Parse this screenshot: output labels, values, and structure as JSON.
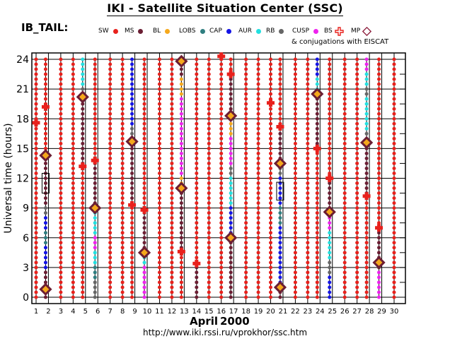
{
  "title": "IKI - Satellite Situation Center (SSC)",
  "subtitle": "IB_TAIL:",
  "eiscat_note": "& conjugations with EISCAT",
  "month_label": "April",
  "year_label": "2000",
  "url": "http://www.iki.rssi.ru/vprokhor/ssc.htm",
  "legend": [
    {
      "label": "SW",
      "color": "#e8211c",
      "symbol": "dot"
    },
    {
      "label": "MS",
      "color": "#6b1e33",
      "symbol": "dot"
    },
    {
      "label": "BL",
      "color": "#f5a81c",
      "symbol": "dot"
    },
    {
      "label": "LOBS",
      "color": "#2f7e80",
      "symbol": "dot"
    },
    {
      "label": "CAP",
      "color": "#1414e6",
      "symbol": "dot"
    },
    {
      "label": "AUR",
      "color": "#22e0e0",
      "symbol": "dot"
    },
    {
      "label": "RB",
      "color": "#666666",
      "symbol": "dot"
    },
    {
      "label": "CUSP",
      "color": "#ee22ee",
      "symbol": "dot"
    },
    {
      "label": "BS",
      "color": "#e8211c",
      "symbol": "cross"
    },
    {
      "label": "MP",
      "color": "#8b1c3b",
      "symbol": "diamond"
    }
  ],
  "chart_data": {
    "type": "scatter",
    "title": "IKI - Satellite Situation Center (SSC)",
    "xlabel": "April 2000",
    "ylabel": "Universal time (hours)",
    "xlim": [
      1,
      30
    ],
    "ylim": [
      0,
      24
    ],
    "x_ticks": [
      1,
      2,
      3,
      4,
      5,
      6,
      7,
      8,
      9,
      10,
      11,
      12,
      13,
      14,
      15,
      16,
      17,
      18,
      19,
      20,
      21,
      22,
      23,
      24,
      25,
      26,
      27,
      28,
      29,
      30
    ],
    "y_ticks": [
      0,
      3,
      6,
      9,
      12,
      15,
      18,
      21,
      24
    ],
    "grid": true,
    "orbit_days": [
      2,
      5,
      6,
      9,
      10,
      13,
      17,
      21,
      24,
      25,
      28,
      29
    ],
    "days": [
      {
        "day": 1,
        "segments": [
          {
            "region": "SW",
            "from": 0,
            "to": 24
          }
        ]
      },
      {
        "day": 2,
        "segments": [
          {
            "region": "MS",
            "from": 0,
            "to": 2.5
          },
          {
            "region": "CAP",
            "from": 2.5,
            "to": 5
          },
          {
            "region": "LOBS",
            "from": 5,
            "to": 6.5
          },
          {
            "region": "CAP",
            "from": 6.5,
            "to": 8
          },
          {
            "region": "RB",
            "from": 8,
            "to": 9
          },
          {
            "region": "MS",
            "from": 9,
            "to": 14.5
          },
          {
            "region": "SW",
            "from": 14.5,
            "to": 24
          }
        ]
      },
      {
        "day": 3,
        "segments": [
          {
            "region": "SW",
            "from": 0,
            "to": 24
          }
        ]
      },
      {
        "day": 4,
        "segments": [
          {
            "region": "SW",
            "from": 0,
            "to": 24
          }
        ]
      },
      {
        "day": 5,
        "segments": [
          {
            "region": "SW",
            "from": 0,
            "to": 13.2
          },
          {
            "region": "MS",
            "from": 13.2,
            "to": 20.2
          },
          {
            "region": "RB",
            "from": 20.2,
            "to": 21
          },
          {
            "region": "AUR",
            "from": 21,
            "to": 24
          }
        ]
      },
      {
        "day": 6,
        "segments": [
          {
            "region": "RB",
            "from": 0,
            "to": 1.5
          },
          {
            "region": "LOBS",
            "from": 1.5,
            "to": 3
          },
          {
            "region": "AUR",
            "from": 3,
            "to": 4.5
          },
          {
            "region": "CUSP",
            "from": 4.5,
            "to": 6
          },
          {
            "region": "AUR",
            "from": 6,
            "to": 9
          },
          {
            "region": "MS",
            "from": 9,
            "to": 13.8
          },
          {
            "region": "SW",
            "from": 13.8,
            "to": 24
          }
        ]
      },
      {
        "day": 7,
        "segments": [
          {
            "region": "SW",
            "from": 0,
            "to": 24
          }
        ]
      },
      {
        "day": 8,
        "segments": [
          {
            "region": "SW",
            "from": 0,
            "to": 24
          }
        ]
      },
      {
        "day": 9,
        "segments": [
          {
            "region": "SW",
            "from": 0,
            "to": 9.3
          },
          {
            "region": "MS",
            "from": 9.3,
            "to": 15.7
          },
          {
            "region": "RB",
            "from": 15.7,
            "to": 17
          },
          {
            "region": "CAP",
            "from": 17,
            "to": 24
          }
        ]
      },
      {
        "day": 10,
        "segments": [
          {
            "region": "CUSP",
            "from": 0,
            "to": 3
          },
          {
            "region": "AUR",
            "from": 3,
            "to": 4.5
          },
          {
            "region": "MS",
            "from": 4.5,
            "to": 8.8
          },
          {
            "region": "SW",
            "from": 8.8,
            "to": 24
          }
        ]
      },
      {
        "day": 11,
        "segments": [
          {
            "region": "SW",
            "from": 0,
            "to": 24
          }
        ]
      },
      {
        "day": 12,
        "segments": [
          {
            "region": "SW",
            "from": 0,
            "to": 24
          }
        ]
      },
      {
        "day": 13,
        "segments": [
          {
            "region": "SW",
            "from": 0,
            "to": 4.6
          },
          {
            "region": "MS",
            "from": 4.6,
            "to": 11
          },
          {
            "region": "BL",
            "from": 11,
            "to": 12
          },
          {
            "region": "CUSP",
            "from": 12,
            "to": 20
          },
          {
            "region": "BL",
            "from": 20,
            "to": 22
          },
          {
            "region": "MS",
            "from": 22,
            "to": 24
          }
        ]
      },
      {
        "day": 14,
        "segments": [
          {
            "region": "MS",
            "from": 0,
            "to": 3.4
          },
          {
            "region": "SW",
            "from": 3.4,
            "to": 24
          }
        ]
      },
      {
        "day": 15,
        "segments": [
          {
            "region": "SW",
            "from": 0,
            "to": 24
          }
        ]
      },
      {
        "day": 16,
        "segments": [
          {
            "region": "SW",
            "from": 0,
            "to": 24
          }
        ]
      },
      {
        "day": 17,
        "segments": [
          {
            "region": "MS",
            "from": 0,
            "to": 6
          },
          {
            "region": "CAP",
            "from": 6,
            "to": 9
          },
          {
            "region": "AUR",
            "from": 9,
            "to": 12
          },
          {
            "region": "RB",
            "from": 12,
            "to": 13
          },
          {
            "region": "CUSP",
            "from": 13,
            "to": 16
          },
          {
            "region": "BL",
            "from": 16,
            "to": 18
          },
          {
            "region": "MS",
            "from": 18,
            "to": 22.5
          },
          {
            "region": "SW",
            "from": 22.5,
            "to": 24
          }
        ]
      },
      {
        "day": 18,
        "segments": [
          {
            "region": "SW",
            "from": 0,
            "to": 24
          }
        ]
      },
      {
        "day": 19,
        "segments": [
          {
            "region": "SW",
            "from": 0,
            "to": 24
          }
        ]
      },
      {
        "day": 20,
        "segments": [
          {
            "region": "SW",
            "from": 0,
            "to": 24
          }
        ]
      },
      {
        "day": 21,
        "segments": [
          {
            "region": "MS",
            "from": 0,
            "to": 1
          },
          {
            "region": "CAP",
            "from": 1,
            "to": 7
          },
          {
            "region": "LOBS",
            "from": 7,
            "to": 9
          },
          {
            "region": "CAP",
            "from": 9,
            "to": 12
          },
          {
            "region": "RB",
            "from": 12,
            "to": 13.5
          },
          {
            "region": "MS",
            "from": 13.5,
            "to": 17.2
          },
          {
            "region": "SW",
            "from": 17.2,
            "to": 24
          }
        ]
      },
      {
        "day": 22,
        "segments": [
          {
            "region": "SW",
            "from": 0,
            "to": 24
          }
        ]
      },
      {
        "day": 23,
        "segments": [
          {
            "region": "SW",
            "from": 0,
            "to": 24
          }
        ]
      },
      {
        "day": 24,
        "segments": [
          {
            "region": "SW",
            "from": 0,
            "to": 15
          },
          {
            "region": "MS",
            "from": 15,
            "to": 20.5
          },
          {
            "region": "AUR",
            "from": 20.5,
            "to": 22
          },
          {
            "region": "CAP",
            "from": 22,
            "to": 24
          }
        ]
      },
      {
        "day": 25,
        "segments": [
          {
            "region": "CAP",
            "from": 0,
            "to": 2
          },
          {
            "region": "RB",
            "from": 2,
            "to": 3.5
          },
          {
            "region": "AUR",
            "from": 3.5,
            "to": 6.5
          },
          {
            "region": "CUSP",
            "from": 6.5,
            "to": 8
          },
          {
            "region": "MS",
            "from": 8,
            "to": 12
          },
          {
            "region": "SW",
            "from": 12,
            "to": 24
          }
        ]
      },
      {
        "day": 26,
        "segments": [
          {
            "region": "SW",
            "from": 0,
            "to": 24
          }
        ]
      },
      {
        "day": 27,
        "segments": [
          {
            "region": "SW",
            "from": 0,
            "to": 24
          }
        ]
      },
      {
        "day": 28,
        "segments": [
          {
            "region": "SW",
            "from": 0,
            "to": 10.2
          },
          {
            "region": "MS",
            "from": 10.2,
            "to": 15.6
          },
          {
            "region": "RB",
            "from": 15.6,
            "to": 16.5
          },
          {
            "region": "AUR",
            "from": 16.5,
            "to": 20
          },
          {
            "region": "RB",
            "from": 20,
            "to": 21
          },
          {
            "region": "AUR",
            "from": 21,
            "to": 22.5
          },
          {
            "region": "CUSP",
            "from": 22.5,
            "to": 24
          }
        ]
      },
      {
        "day": 29,
        "segments": [
          {
            "region": "CUSP",
            "from": 0,
            "to": 2.5
          },
          {
            "region": "MS",
            "from": 2.5,
            "to": 7
          },
          {
            "region": "SW",
            "from": 7,
            "to": 24
          }
        ]
      },
      {
        "day": 30,
        "segments": [
          {
            "region": "SW",
            "from": 0,
            "to": 24
          }
        ]
      }
    ],
    "bow_shock_crossings": [
      {
        "day": 1,
        "time": 17.6
      },
      {
        "day": 2,
        "time": 19.2
      },
      {
        "day": 5,
        "time": 13.2
      },
      {
        "day": 6,
        "time": 13.8
      },
      {
        "day": 9,
        "time": 9.3
      },
      {
        "day": 10,
        "time": 8.8
      },
      {
        "day": 13,
        "time": 4.6
      },
      {
        "day": 14,
        "time": 3.4
      },
      {
        "day": 16,
        "time": 24.3
      },
      {
        "day": 17,
        "time": 22.5
      },
      {
        "day": 20,
        "time": 19.6
      },
      {
        "day": 21,
        "time": 17.2
      },
      {
        "day": 24,
        "time": 15.0
      },
      {
        "day": 25,
        "time": 12.0
      },
      {
        "day": 28,
        "time": 10.2
      },
      {
        "day": 29,
        "time": 7.0
      }
    ],
    "magnetopause_crossings": [
      {
        "day": 2,
        "time": 0.8
      },
      {
        "day": 2,
        "time": 14.3
      },
      {
        "day": 5,
        "time": 20.2
      },
      {
        "day": 6,
        "time": 9.0
      },
      {
        "day": 9,
        "time": 15.7
      },
      {
        "day": 10,
        "time": 4.5
      },
      {
        "day": 13,
        "time": 11.0
      },
      {
        "day": 13,
        "time": 23.8
      },
      {
        "day": 17,
        "time": 6.0
      },
      {
        "day": 17,
        "time": 18.3
      },
      {
        "day": 21,
        "time": 1.0
      },
      {
        "day": 21,
        "time": 13.5
      },
      {
        "day": 24,
        "time": 20.5
      },
      {
        "day": 25,
        "time": 8.6
      },
      {
        "day": 28,
        "time": 15.6
      },
      {
        "day": 29,
        "time": 3.5
      }
    ],
    "eiscat_conjugations": [
      {
        "day": 2,
        "from": 10.5,
        "to": 12.5
      },
      {
        "day": 21,
        "from": 9.8,
        "to": 11.6
      }
    ]
  }
}
